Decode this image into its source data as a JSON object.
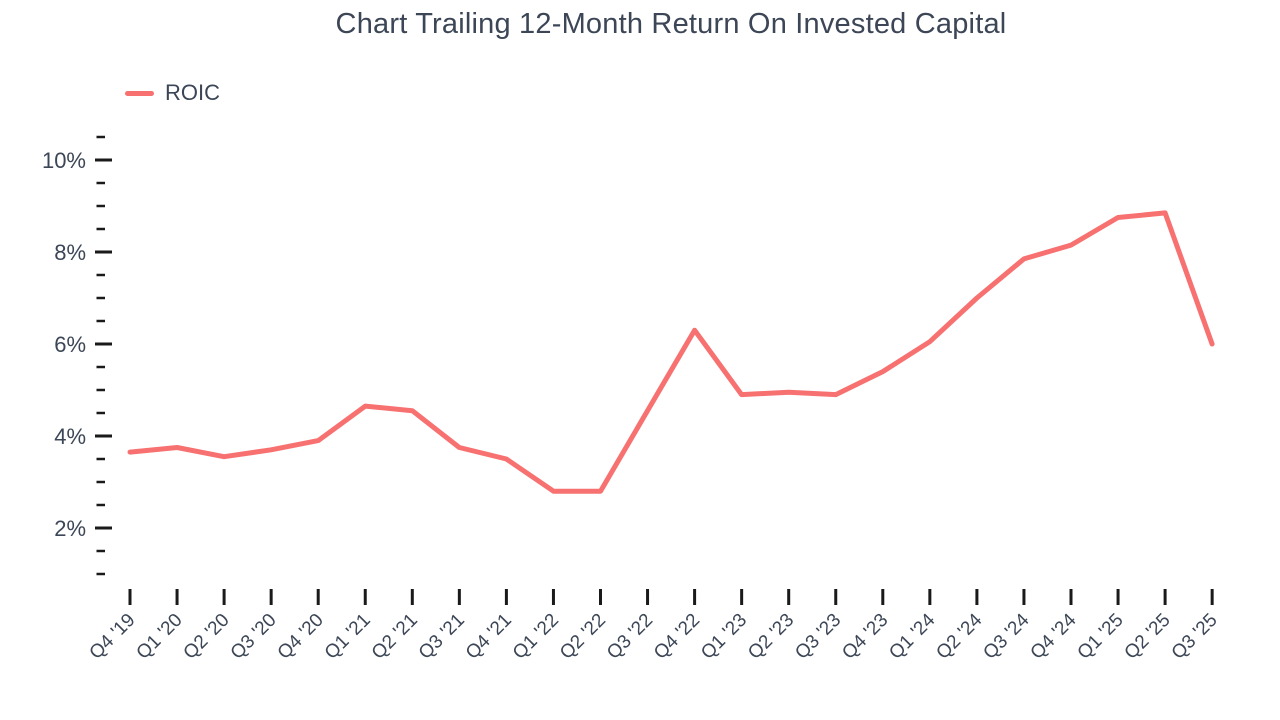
{
  "header": {
    "title": "Chart Trailing 12-Month Return On Invested Capital"
  },
  "chart_data": {
    "type": "line",
    "title": "Chart Trailing 12-Month Return On Invested Capital",
    "categories": [
      "Q4 '19",
      "Q1 '20",
      "Q2 '20",
      "Q3 '20",
      "Q4 '20",
      "Q1 '21",
      "Q2 '21",
      "Q3 '21",
      "Q4 '21",
      "Q1 '22",
      "Q2 '22",
      "Q3 '22",
      "Q4 '22",
      "Q1 '23",
      "Q2 '23",
      "Q3 '23",
      "Q4 '23",
      "Q1 '24",
      "Q2 '24",
      "Q3 '24",
      "Q4 '24",
      "Q1 '25",
      "Q2 '25",
      "Q3 '25"
    ],
    "series": [
      {
        "name": "ROIC",
        "color": "#F87171",
        "values": [
          3.65,
          3.75,
          3.55,
          3.7,
          3.9,
          4.65,
          4.55,
          3.75,
          3.5,
          2.8,
          2.8,
          4.55,
          6.3,
          4.9,
          4.95,
          4.9,
          5.4,
          6.05,
          7.0,
          7.85,
          8.15,
          8.75,
          8.85,
          6.0
        ]
      }
    ],
    "xlabel": "",
    "ylabel": "",
    "y_axis": {
      "unit": "%",
      "major_ticks": [
        2,
        4,
        6,
        8,
        10
      ],
      "major_tick_labels": [
        "2%",
        "4%",
        "6%",
        "8%",
        "10%"
      ],
      "minor_tick_step": 0.5,
      "range": [
        1,
        10.5
      ]
    },
    "x_axis": {
      "label_rotation_degrees": -45
    },
    "grid": false,
    "legend_position": "top-left",
    "line_width": 5,
    "markers": false,
    "text_color": "#3C4656",
    "tick_color": "#1a1a1a",
    "background": "#FFFFFF"
  }
}
